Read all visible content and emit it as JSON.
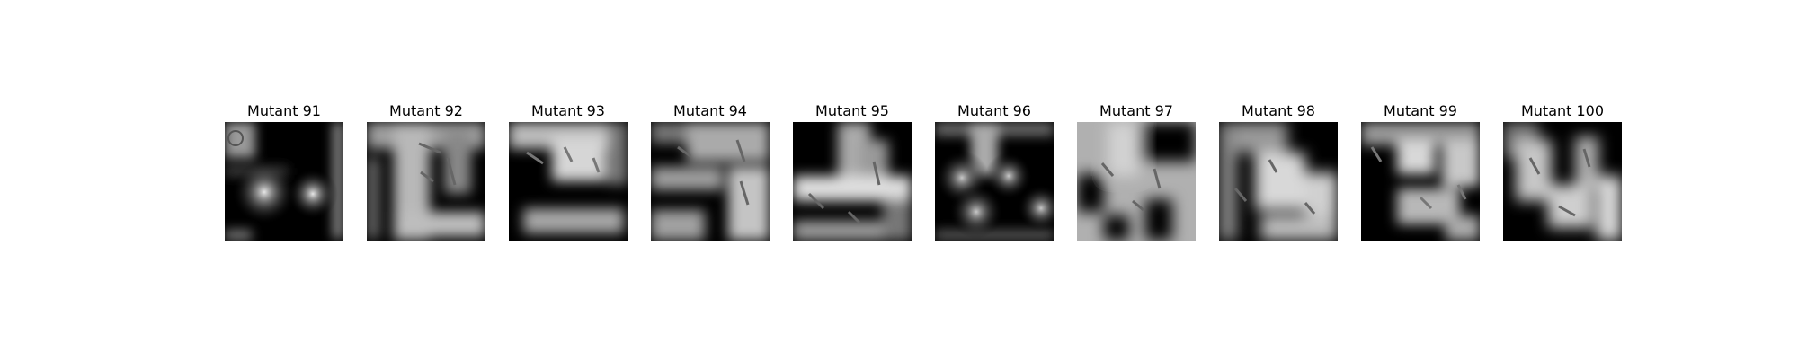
{
  "panels": [
    {
      "title": "Mutant 91"
    },
    {
      "title": "Mutant 92"
    },
    {
      "title": "Mutant 93"
    },
    {
      "title": "Mutant 94"
    },
    {
      "title": "Mutant 95"
    },
    {
      "title": "Mutant 96"
    },
    {
      "title": "Mutant 97"
    },
    {
      "title": "Mutant 98"
    },
    {
      "title": "Mutant 99"
    },
    {
      "title": "Mutant 100"
    }
  ]
}
